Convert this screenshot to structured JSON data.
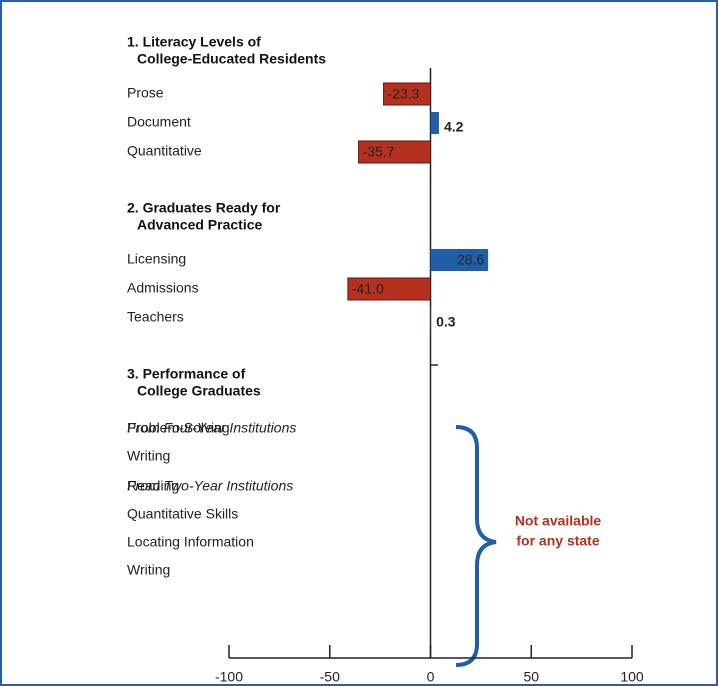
{
  "chart_data": {
    "type": "bar",
    "positive_color": "#1f5fa8",
    "negative_color": "#b5301f",
    "xlim": [
      -100,
      100
    ],
    "xticks": [
      -100,
      -50,
      0,
      50,
      100
    ],
    "sections": [
      {
        "title": [
          "1. Literacy Levels of",
          "College-Educated Residents"
        ],
        "groups": [
          {
            "categories": [
              "Prose",
              "Document",
              "Quantitative"
            ],
            "values": [
              -23.3,
              4.2,
              -35.7
            ],
            "value_labels": [
              "-23.3",
              "4.2",
              "-35.7"
            ]
          }
        ]
      },
      {
        "title": [
          "2. Graduates Ready for",
          "Advanced Practice"
        ],
        "groups": [
          {
            "categories": [
              "Licensing",
              "Admissions",
              "Teachers"
            ],
            "values": [
              28.6,
              -41.0,
              0.3
            ],
            "value_labels": [
              "28.6",
              "-41.0",
              "0.3"
            ]
          }
        ]
      },
      {
        "title": [
          "3. Performance of",
          "College Graduates"
        ],
        "groups": [
          {
            "subtitle": "From Four-Year Institutions",
            "categories": [
              "Problem-Solving",
              "Writing"
            ],
            "values": [
              null,
              null
            ]
          },
          {
            "subtitle": "From Two-Year Institutions",
            "categories": [
              "Reading",
              "Quantitative Skills",
              "Locating Information",
              "Writing"
            ],
            "values": [
              null,
              null,
              null,
              null
            ]
          }
        ]
      }
    ],
    "annotation": [
      "Not available",
      "for any state"
    ]
  }
}
